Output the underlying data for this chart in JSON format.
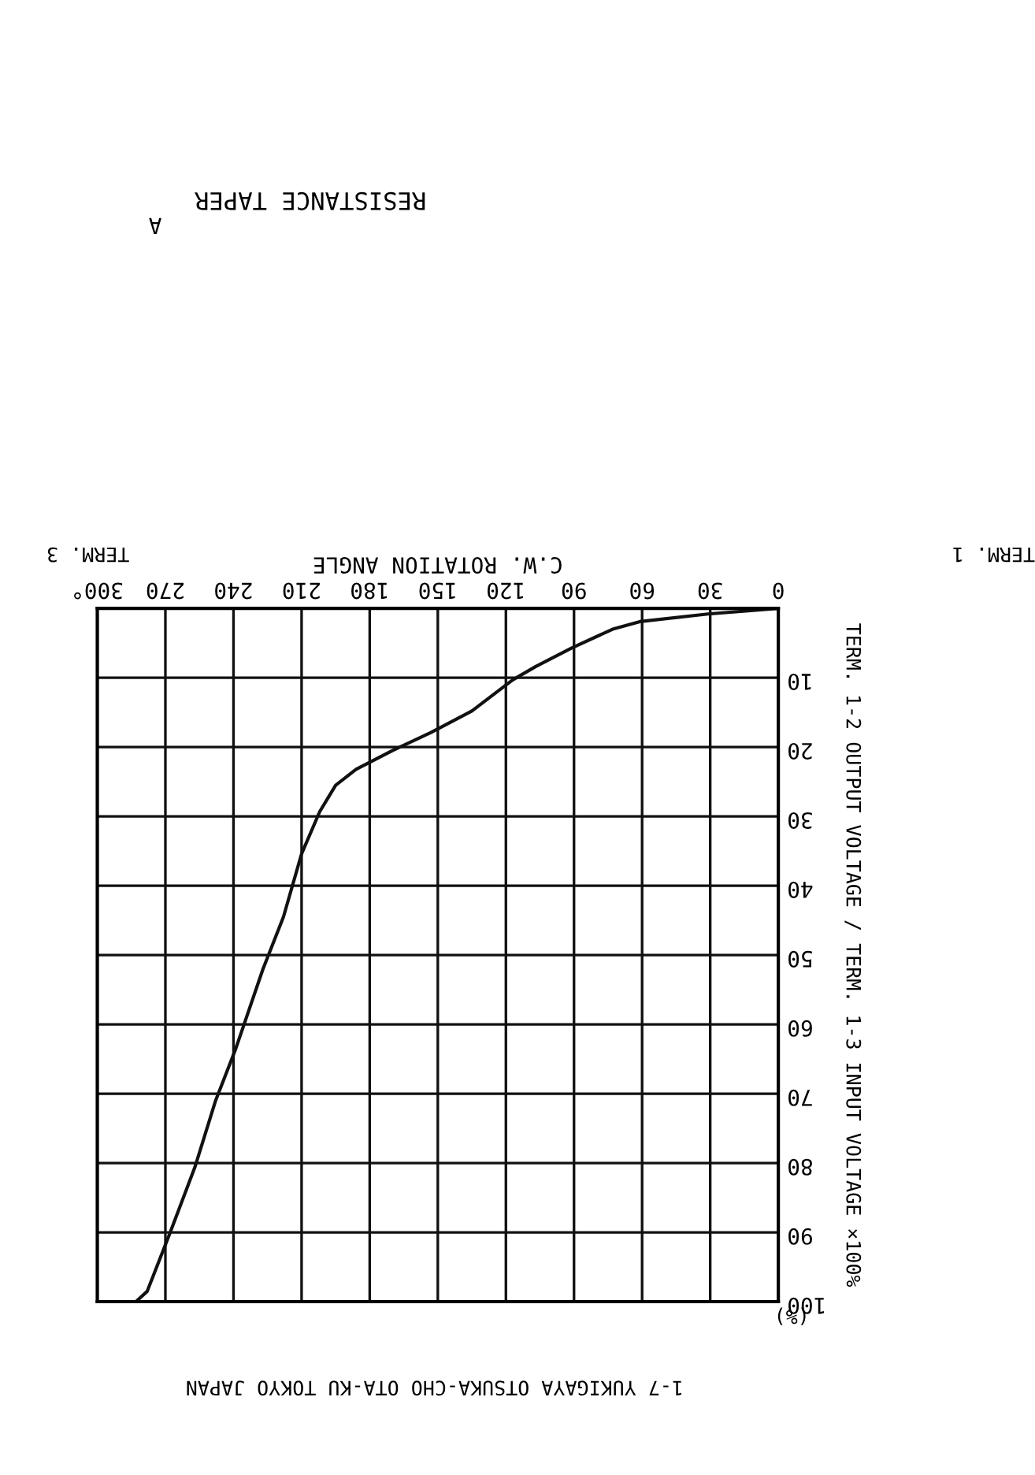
{
  "chart_data": {
    "type": "line",
    "title": "RESISTANCE TAPER",
    "subtitle": "A",
    "xlabel": "C.W. ROTATION ANGLE",
    "ylabel": "TERM. 1-2 OUTPUT VOLTAGE / TERM. 1-3 INPUT VOLTAGE ×100%",
    "annotations": [
      "TERM. 1",
      "TERM. 3",
      "(%)",
      "1-7 YUKIGAYA OTSUKA-CHO OTA-KU TOKYO JAPAN"
    ],
    "series": [
      {
        "color": "#111111",
        "x": [
          0,
          31,
          61,
          73,
          91,
          107,
          117,
          135,
          153,
          170,
          186,
          195,
          202,
          210,
          218,
          227,
          239,
          248,
          257,
          268,
          278,
          283
        ],
        "values": [
          0,
          0.8,
          1.9,
          3,
          5.7,
          8.4,
          10.3,
          14.8,
          17.9,
          20.5,
          23.2,
          25.5,
          29.3,
          35.4,
          44.5,
          52,
          63.5,
          71.1,
          80.6,
          90.1,
          98.5,
          100
        ]
      }
    ],
    "xlim": [
      300,
      0
    ],
    "ylim": [
      100,
      0
    ],
    "xticks": [
      0,
      30,
      60,
      90,
      120,
      150,
      180,
      210,
      240,
      270,
      {
        "value": 300,
        "label": "300°"
      }
    ],
    "yticks": [
      {
        "value": 0,
        "label": null
      },
      10,
      20,
      30,
      40,
      50,
      60,
      70,
      80,
      90,
      100
    ],
    "grid": true,
    "line_style": "solid",
    "marker": "none"
  }
}
